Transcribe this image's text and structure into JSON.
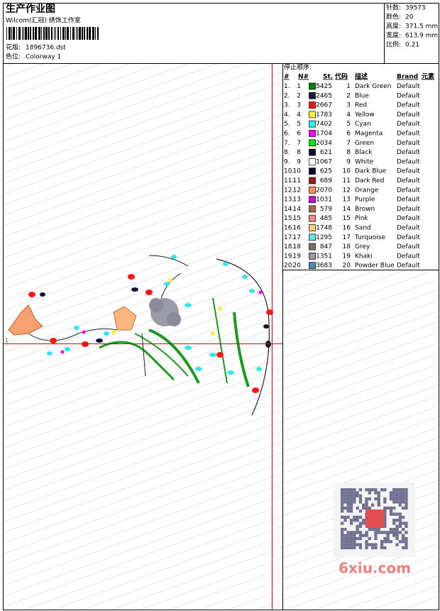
{
  "header": {
    "title": "生产作业图",
    "subtitle": "Wilcom(汇冠) 绣饰工作室",
    "design_label": "花版:",
    "design": "1896736.dst",
    "colorway_label": "色位:",
    "colorway": "Colorway 1"
  },
  "info": [
    {
      "label": "针数:",
      "value": "39573"
    },
    {
      "label": "颜色:",
      "value": "20"
    },
    {
      "label": "高度:",
      "value": "371.5 mm"
    },
    {
      "label": "宽度:",
      "value": "613.9 mm"
    },
    {
      "label": "比例:",
      "value": "0.21"
    }
  ],
  "design_marker": "1",
  "table": {
    "title": "停止顺序:",
    "columns": [
      "#",
      "N#",
      "St.",
      "代码",
      "描述",
      "Brand",
      "元素"
    ],
    "rows": [
      {
        "num": "1.",
        "n": "1",
        "color": "#008000",
        "st": "5425",
        "code": "1",
        "desc": "Dark Green",
        "brand": "Default"
      },
      {
        "num": "2.",
        "n": "2",
        "color": "#141a38",
        "st": "2465",
        "code": "2",
        "desc": "Blue",
        "brand": "Default"
      },
      {
        "num": "3.",
        "n": "3",
        "color": "#ff1010",
        "st": "2667",
        "code": "3",
        "desc": "Red",
        "brand": "Default"
      },
      {
        "num": "4.",
        "n": "4",
        "color": "#ffee40",
        "st": "1783",
        "code": "4",
        "desc": "Yellow",
        "brand": "Default"
      },
      {
        "num": "5.",
        "n": "5",
        "color": "#30f0f0",
        "st": "7402",
        "code": "5",
        "desc": "Cyan",
        "brand": "Default"
      },
      {
        "num": "6.",
        "n": "6",
        "color": "#ff00ff",
        "st": "1704",
        "code": "6",
        "desc": "Magenta",
        "brand": "Default"
      },
      {
        "num": "7.",
        "n": "7",
        "color": "#10e010",
        "st": "2034",
        "code": "7",
        "desc": "Green",
        "brand": "Default"
      },
      {
        "num": "8.",
        "n": "8",
        "color": "#101028",
        "st": "621",
        "code": "8",
        "desc": "Black",
        "brand": "Default"
      },
      {
        "num": "9.",
        "n": "9",
        "color": "#ffffff",
        "st": "1067",
        "code": "9",
        "desc": "White",
        "brand": "Default"
      },
      {
        "num": "10.",
        "n": "10",
        "color": "#0c0c30",
        "st": "625",
        "code": "10",
        "desc": "Dark Blue",
        "brand": "Default"
      },
      {
        "num": "11.",
        "n": "11",
        "color": "#a01818",
        "st": "689",
        "code": "11",
        "desc": "Dark Red",
        "brand": "Default"
      },
      {
        "num": "12.",
        "n": "12",
        "color": "#f89060",
        "st": "2070",
        "code": "12",
        "desc": "Orange",
        "brand": "Default"
      },
      {
        "num": "13.",
        "n": "13",
        "color": "#c010d0",
        "st": "1031",
        "code": "13",
        "desc": "Purple",
        "brand": "Default"
      },
      {
        "num": "14.",
        "n": "14",
        "color": "#a86850",
        "st": "579",
        "code": "14",
        "desc": "Brown",
        "brand": "Default"
      },
      {
        "num": "15.",
        "n": "15",
        "color": "#ff8888",
        "st": "485",
        "code": "15",
        "desc": "Pink",
        "brand": "Default"
      },
      {
        "num": "16.",
        "n": "16",
        "color": "#f4d080",
        "st": "1748",
        "code": "16",
        "desc": "Sand",
        "brand": "Default"
      },
      {
        "num": "17.",
        "n": "17",
        "color": "#60e8e0",
        "st": "1295",
        "code": "17",
        "desc": "Turquoise",
        "brand": "Default"
      },
      {
        "num": "18.",
        "n": "18",
        "color": "#807068",
        "st": "847",
        "code": "18",
        "desc": "Grey",
        "brand": "Default"
      },
      {
        "num": "19.",
        "n": "19",
        "color": "#9a9a9a",
        "st": "1351",
        "code": "19",
        "desc": "Khaki",
        "brand": "Default"
      },
      {
        "num": "20.",
        "n": "20",
        "color": "#5088a8",
        "st": "3683",
        "code": "20",
        "desc": "Powder Blue",
        "brand": "Default"
      }
    ]
  },
  "watermark": "6xiu.com"
}
